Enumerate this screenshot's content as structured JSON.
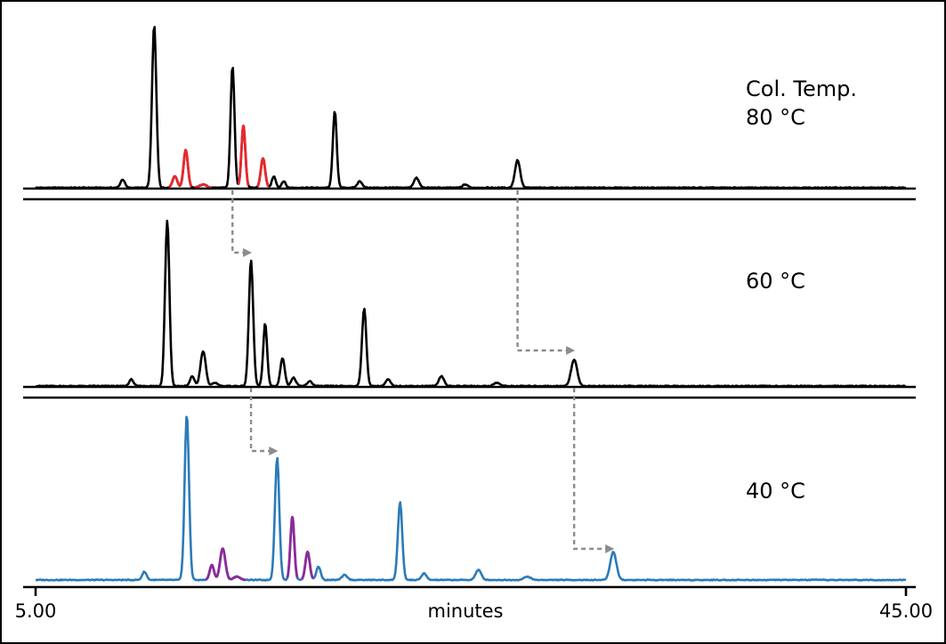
{
  "chart_data": {
    "type": "line",
    "title": "",
    "xlabel": "minutes",
    "ylabel": "",
    "xlim": [
      5.0,
      45.0
    ],
    "x_tick_labels": [
      "5.00",
      "45.00"
    ],
    "grid": false,
    "legend": "none",
    "panels": [
      {
        "id": "top",
        "label_lines": [
          "Col. Temp.",
          "80 °C"
        ],
        "color": "#000000",
        "highlight_color": "#e8282d",
        "baseline_noise": 0.02,
        "peaks": [
          {
            "t": 9.0,
            "h": 0.05,
            "w": 0.1
          },
          {
            "t": 10.45,
            "h": 1.0,
            "w": 0.1
          },
          {
            "t": 11.4,
            "h": 0.07,
            "w": 0.11,
            "highlight": true
          },
          {
            "t": 11.9,
            "h": 0.23,
            "w": 0.1,
            "highlight": true
          },
          {
            "t": 12.7,
            "h": 0.02,
            "w": 0.15,
            "highlight": true
          },
          {
            "t": 14.05,
            "h": 0.75,
            "w": 0.09
          },
          {
            "t": 14.55,
            "h": 0.38,
            "w": 0.09,
            "highlight": true
          },
          {
            "t": 15.45,
            "h": 0.18,
            "w": 0.1,
            "highlight": true
          },
          {
            "t": 15.95,
            "h": 0.07,
            "w": 0.09
          },
          {
            "t": 16.4,
            "h": 0.04,
            "w": 0.09
          },
          {
            "t": 18.75,
            "h": 0.47,
            "w": 0.09
          },
          {
            "t": 19.9,
            "h": 0.04,
            "w": 0.11
          },
          {
            "t": 22.5,
            "h": 0.06,
            "w": 0.12
          },
          {
            "t": 24.75,
            "h": 0.02,
            "w": 0.12
          },
          {
            "t": 27.15,
            "h": 0.17,
            "w": 0.12
          }
        ]
      },
      {
        "id": "middle",
        "label_lines": [
          "60 °C"
        ],
        "color": "#000000",
        "baseline_noise": 0.02,
        "peaks": [
          {
            "t": 9.4,
            "h": 0.04,
            "w": 0.1
          },
          {
            "t": 11.05,
            "h": 1.0,
            "w": 0.1
          },
          {
            "t": 12.2,
            "h": 0.06,
            "w": 0.1
          },
          {
            "t": 12.7,
            "h": 0.21,
            "w": 0.12
          },
          {
            "t": 13.25,
            "h": 0.02,
            "w": 0.12
          },
          {
            "t": 14.9,
            "h": 0.76,
            "w": 0.1
          },
          {
            "t": 15.55,
            "h": 0.38,
            "w": 0.09
          },
          {
            "t": 16.35,
            "h": 0.17,
            "w": 0.1
          },
          {
            "t": 16.85,
            "h": 0.05,
            "w": 0.11
          },
          {
            "t": 17.6,
            "h": 0.03,
            "w": 0.11
          },
          {
            "t": 20.1,
            "h": 0.47,
            "w": 0.1
          },
          {
            "t": 21.2,
            "h": 0.04,
            "w": 0.11
          },
          {
            "t": 23.65,
            "h": 0.06,
            "w": 0.12
          },
          {
            "t": 26.2,
            "h": 0.02,
            "w": 0.14
          },
          {
            "t": 29.75,
            "h": 0.16,
            "w": 0.14
          }
        ]
      },
      {
        "id": "bottom",
        "label_lines": [
          "40 °C"
        ],
        "color": "#2b7bba",
        "highlight_color": "#8b2a9a",
        "baseline_noise": 0.02,
        "peaks": [
          {
            "t": 10.0,
            "h": 0.05,
            "w": 0.1
          },
          {
            "t": 11.95,
            "h": 1.0,
            "w": 0.1
          },
          {
            "t": 13.1,
            "h": 0.09,
            "w": 0.1,
            "highlight": true
          },
          {
            "t": 13.6,
            "h": 0.19,
            "w": 0.12,
            "highlight": true
          },
          {
            "t": 14.25,
            "h": 0.02,
            "w": 0.15,
            "highlight": true
          },
          {
            "t": 16.1,
            "h": 0.74,
            "w": 0.1
          },
          {
            "t": 16.8,
            "h": 0.38,
            "w": 0.09,
            "highlight": true
          },
          {
            "t": 17.5,
            "h": 0.17,
            "w": 0.1,
            "highlight": true
          },
          {
            "t": 18.0,
            "h": 0.08,
            "w": 0.1
          },
          {
            "t": 19.2,
            "h": 0.03,
            "w": 0.12
          },
          {
            "t": 21.75,
            "h": 0.47,
            "w": 0.1
          },
          {
            "t": 22.85,
            "h": 0.04,
            "w": 0.11
          },
          {
            "t": 25.35,
            "h": 0.06,
            "w": 0.13
          },
          {
            "t": 27.6,
            "h": 0.02,
            "w": 0.15
          },
          {
            "t": 31.55,
            "h": 0.17,
            "w": 0.14
          }
        ]
      }
    ],
    "shift_arrows": [
      {
        "from_panel": "top",
        "to_panel": "middle",
        "from_t": 14.05,
        "to_t": 14.9
      },
      {
        "from_panel": "top",
        "to_panel": "middle",
        "from_t": 27.15,
        "to_t": 29.75
      },
      {
        "from_panel": "middle",
        "to_panel": "bottom",
        "from_t": 14.9,
        "to_t": 16.1
      },
      {
        "from_panel": "middle",
        "to_panel": "bottom",
        "from_t": 29.75,
        "to_t": 31.55
      }
    ],
    "arrow_color": "#8c8c8c",
    "axis_color": "#000000"
  }
}
